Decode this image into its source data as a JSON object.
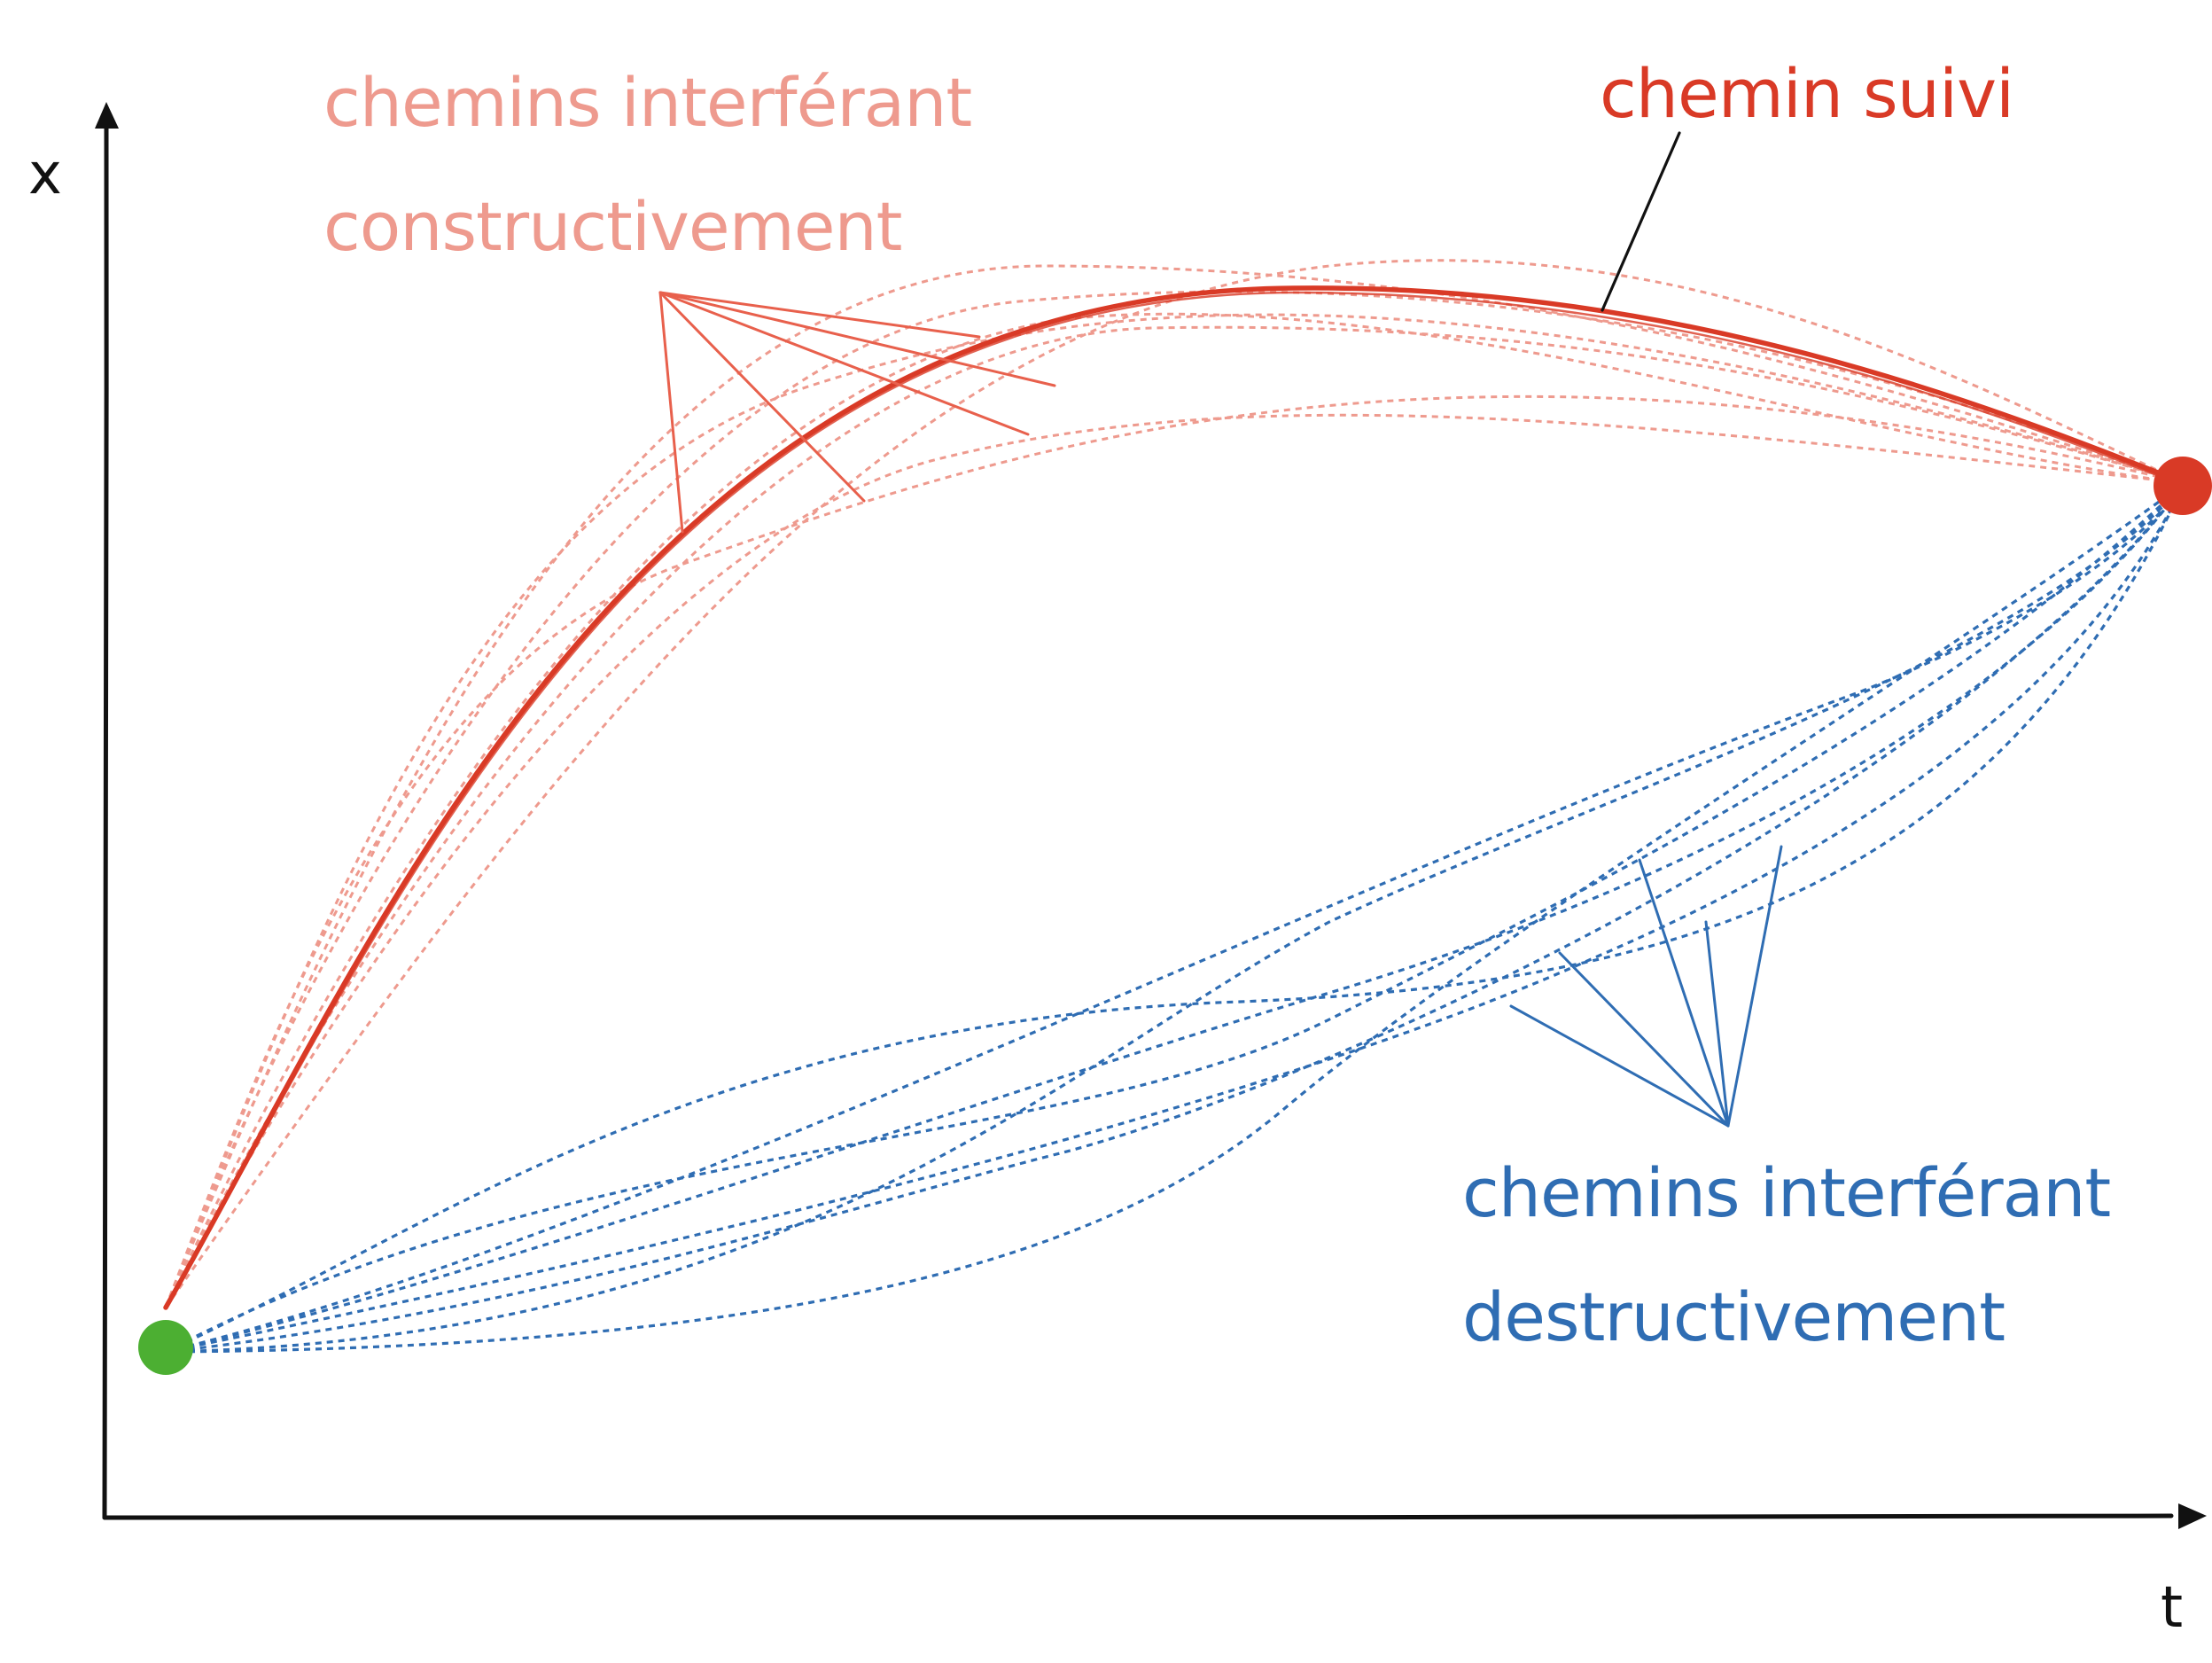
{
  "axes": {
    "x_label": "x",
    "t_label": "t"
  },
  "labels": {
    "constructive_line1": "chemins interférant",
    "constructive_line2": "constructivement",
    "followed": "chemin suivi",
    "destructive_line1": "chemins interférant",
    "destructive_line2": "destructivement"
  },
  "colors": {
    "axis": "#111111",
    "followed_path": "#d93a26",
    "constructive": "#ee9a8e",
    "constructive_pointer": "#e8604c",
    "destructive": "#2f6db3",
    "start_point": "#4caf32",
    "end_point": "#d93a26",
    "annotation": "#111111"
  }
}
